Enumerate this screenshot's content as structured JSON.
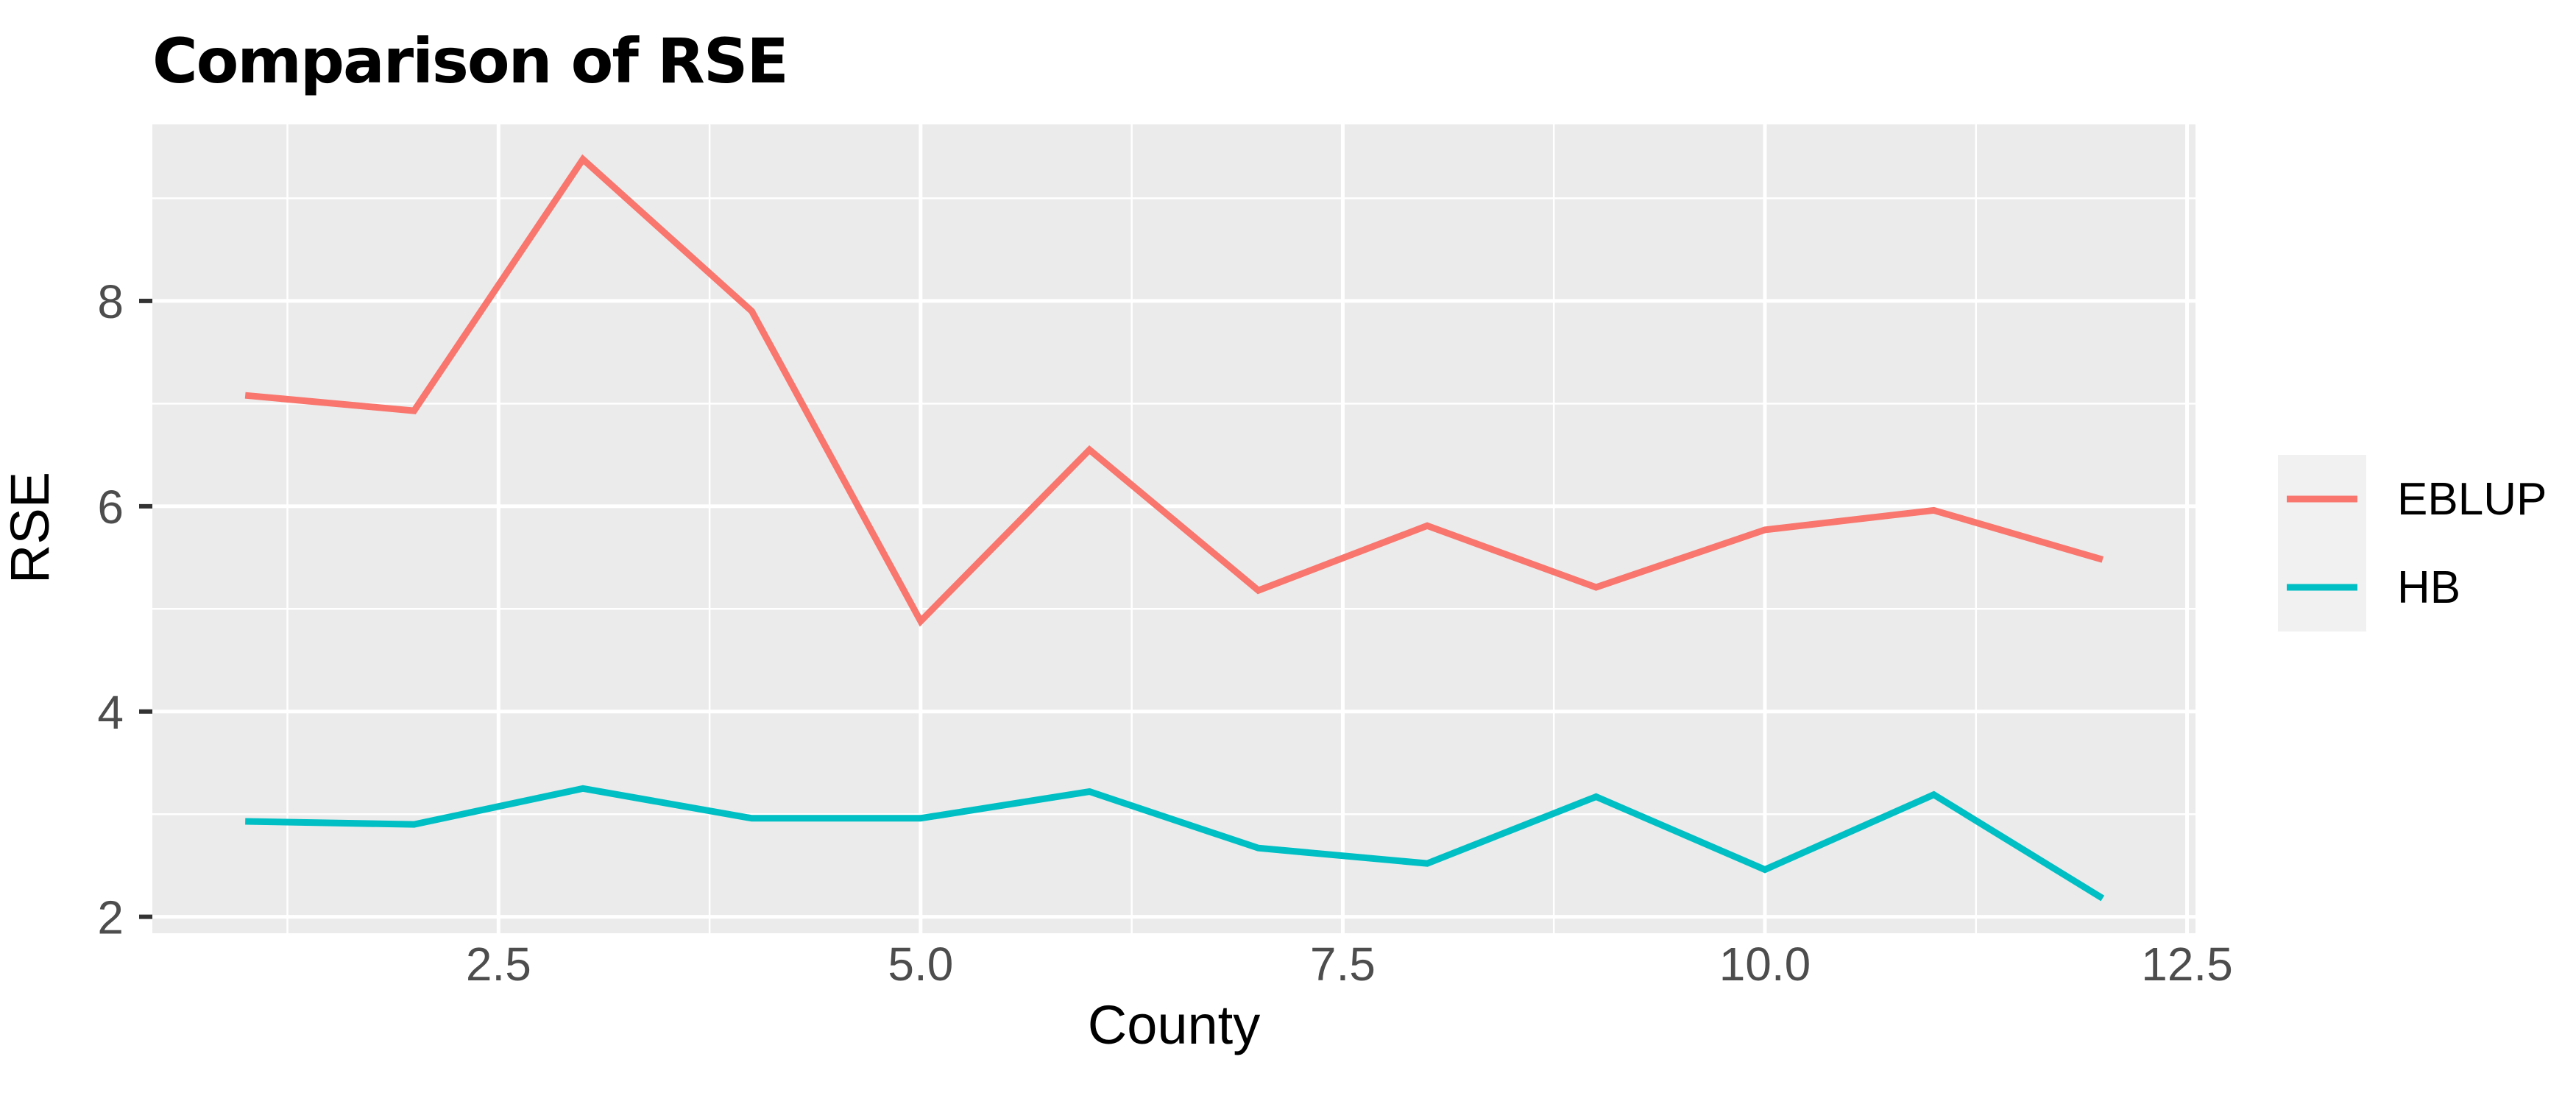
{
  "title": "Comparison of RSE",
  "chart_data": {
    "type": "line",
    "title": "Comparison of RSE",
    "xlabel": "County",
    "ylabel": "RSE",
    "x": [
      1,
      2,
      3,
      4,
      5,
      6,
      7,
      8,
      9,
      10,
      11,
      12
    ],
    "series": [
      {
        "name": "EBLUP",
        "color": "#F8766D",
        "values": [
          7.08,
          6.93,
          9.38,
          7.9,
          4.88,
          6.55,
          5.18,
          5.81,
          5.21,
          5.77,
          5.96,
          5.48
        ]
      },
      {
        "name": "HB",
        "color": "#00BFC4",
        "values": [
          2.93,
          2.9,
          3.25,
          2.96,
          2.96,
          3.22,
          2.67,
          2.52,
          3.17,
          2.46,
          3.19,
          2.18
        ]
      }
    ],
    "xlim": [
      0.45,
      12.55
    ],
    "ylim": [
      1.84,
      9.72
    ],
    "x_ticks": [
      2.5,
      5.0,
      7.5,
      10.0,
      12.5
    ],
    "x_tick_labels": [
      "2.5",
      "5.0",
      "7.5",
      "10.0",
      "12.5"
    ],
    "y_ticks": [
      2,
      4,
      6,
      8
    ],
    "y_tick_labels": [
      "2",
      "4",
      "6",
      "8"
    ],
    "x_minor_ticks": [
      1.25,
      3.75,
      6.25,
      8.75,
      11.25
    ],
    "y_minor_ticks": [
      3,
      5,
      7,
      9
    ],
    "grid": true,
    "legend_position": "right",
    "panel_bg": "#EBEBEB",
    "legend_key_bg": "#F1F1F1",
    "grid_color": "#FFFFFF",
    "axis_text_color": "#4D4D4D",
    "tick_mark_color": "#333333",
    "line_width": 9
  }
}
